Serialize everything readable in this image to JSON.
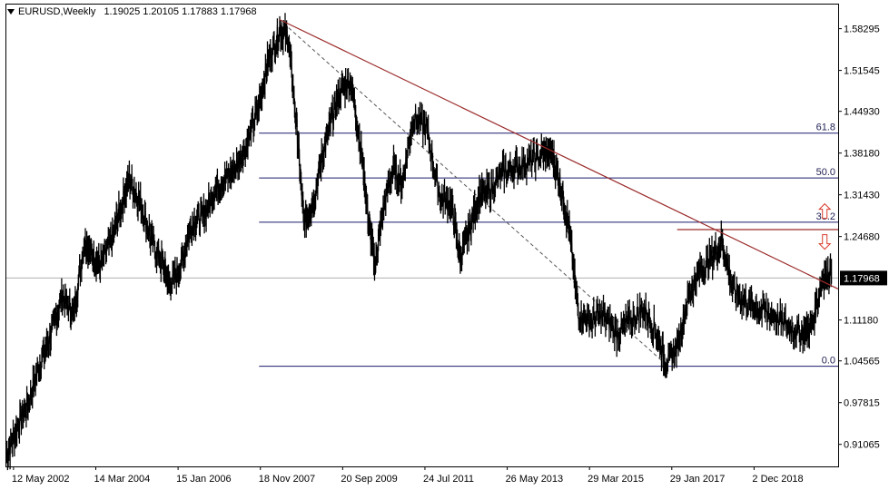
{
  "header": {
    "symbol_tf": "EURUSD,Weekly",
    "ohlc": "1.19025 1.20105 1.17883 1.17968"
  },
  "colors": {
    "price": "#000000",
    "fib": "#1a1a6e",
    "trendline": "#9b2a2a",
    "arrow": "#d83a2a",
    "dashed": "#555555",
    "last_price_bg": "#000000",
    "last_price_fg": "#ffffff"
  },
  "chart_data": {
    "type": "line",
    "ohlc_style": "bars",
    "symbol": "EURUSD",
    "timeframe": "Weekly",
    "last_price": "1.17968",
    "ylim": [
      0.875,
      1.622
    ],
    "y_ticks": [
      "1.58295",
      "1.51545",
      "1.44930",
      "1.38180",
      "1.31430",
      "1.24680",
      "1.11180",
      "1.04565",
      "0.97815",
      "0.91065"
    ],
    "y_tick_values": [
      1.58295,
      1.51545,
      1.4493,
      1.3818,
      1.3143,
      1.2468,
      1.1118,
      1.04565,
      0.97815,
      0.91065
    ],
    "x_ticks": [
      "12 May 2002",
      "14 Mar 2004",
      "15 Jan 2006",
      "18 Nov 2007",
      "20 Sep 2009",
      "24 Jul 2011",
      "26 May 2013",
      "29 Mar 2015",
      "29 Jan 2017",
      "2 Dec 2018"
    ],
    "x_tick_years": [
      2002.36,
      2004.2,
      2006.04,
      2007.88,
      2009.72,
      2011.56,
      2013.4,
      2015.24,
      2017.08,
      2018.92
    ],
    "xlim": [
      2002.2,
      2020.8
    ],
    "series": [
      {
        "x": [
          2002.2,
          2002.45,
          2002.7,
          2002.95,
          2003.2,
          2003.45,
          2003.7,
          2003.95,
          2004.1,
          2004.3,
          2004.55,
          2004.75,
          2004.95,
          2005.2,
          2005.45,
          2005.7,
          2005.85,
          2006.1,
          2006.35,
          2006.6,
          2006.85,
          2007.1,
          2007.35,
          2007.6,
          2007.85,
          2008.05,
          2008.3,
          2008.5,
          2008.7,
          2008.85,
          2009.05,
          2009.25,
          2009.45,
          2009.65,
          2009.9,
          2010.15,
          2010.3,
          2010.45,
          2010.6,
          2010.85,
          2011.05,
          2011.3,
          2011.6,
          2011.9,
          2012.15,
          2012.35,
          2012.55,
          2012.75,
          2013.0,
          2013.3,
          2013.6,
          2013.9,
          2014.2,
          2014.4,
          2014.6,
          2014.8,
          2015.0,
          2015.25,
          2015.55,
          2015.85,
          2016.15,
          2016.45,
          2016.75,
          2016.95,
          2017.2,
          2017.45,
          2017.7,
          2017.95,
          2018.2,
          2018.45,
          2018.75,
          2019.0,
          2019.35,
          2019.7,
          2020.0,
          2020.2,
          2020.45,
          2020.65
        ],
        "y": [
          0.89,
          0.94,
          0.98,
          1.04,
          1.09,
          1.15,
          1.12,
          1.24,
          1.22,
          1.2,
          1.24,
          1.29,
          1.34,
          1.3,
          1.24,
          1.2,
          1.17,
          1.2,
          1.27,
          1.28,
          1.32,
          1.34,
          1.36,
          1.4,
          1.46,
          1.53,
          1.58,
          1.57,
          1.42,
          1.27,
          1.3,
          1.37,
          1.43,
          1.48,
          1.5,
          1.38,
          1.27,
          1.2,
          1.28,
          1.36,
          1.33,
          1.44,
          1.42,
          1.31,
          1.3,
          1.21,
          1.26,
          1.31,
          1.32,
          1.35,
          1.36,
          1.37,
          1.38,
          1.38,
          1.33,
          1.25,
          1.12,
          1.11,
          1.12,
          1.09,
          1.11,
          1.13,
          1.09,
          1.04,
          1.07,
          1.15,
          1.19,
          1.21,
          1.24,
          1.16,
          1.14,
          1.13,
          1.12,
          1.1,
          1.09,
          1.1,
          1.18,
          1.19
        ]
      }
    ],
    "fibonacci": [
      {
        "label": "61.8",
        "value": 1.414
      },
      {
        "label": "50.0",
        "value": 1.3415
      },
      {
        "label": "38.2",
        "value": 1.27
      },
      {
        "label": "0.0",
        "value": 1.037
      }
    ],
    "resistance_level": 1.258,
    "trendline": {
      "x": [
        2008.3,
        2020.8
      ],
      "y": [
        1.598,
        1.162
      ]
    },
    "dashed_line": {
      "x": [
        2008.3,
        2016.95
      ],
      "y": [
        1.598,
        1.04
      ]
    },
    "arrows": [
      {
        "direction": "up",
        "x": 2020.5,
        "y": 1.288
      },
      {
        "direction": "down",
        "x": 2020.5,
        "y": 1.238
      }
    ]
  }
}
